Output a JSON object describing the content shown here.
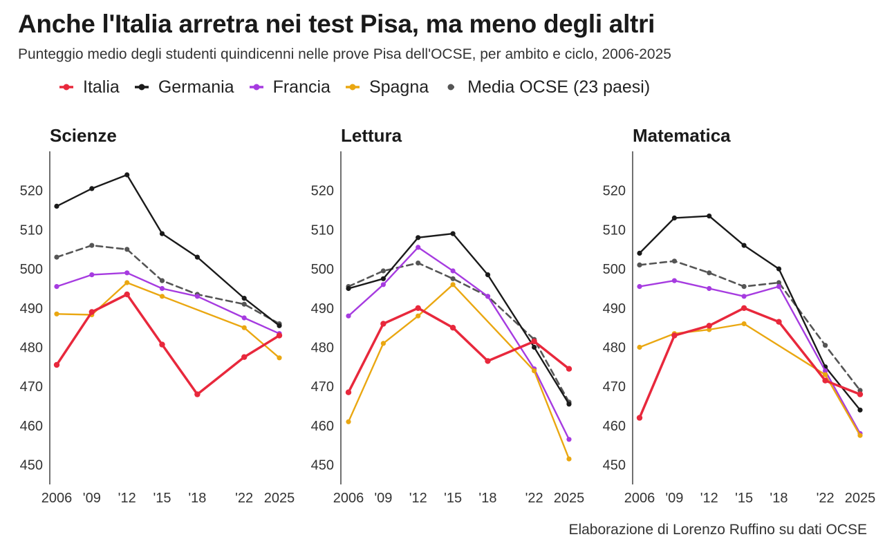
{
  "title": "Anche l'Italia arretra nei test Pisa, ma meno degli altri",
  "subtitle": "Punteggio medio degli studenti quindicenni nelle prove Pisa dell'OCSE, per ambito e ciclo, 2006-2025",
  "source": "Elaborazione di Lorenzo Ruffino su dati OCSE",
  "legend": [
    {
      "label": "Italia",
      "color": "#e8283c",
      "dashed": false
    },
    {
      "label": "Germania",
      "color": "#1a1a1a",
      "dashed": false
    },
    {
      "label": "Francia",
      "color": "#a63be0",
      "dashed": false
    },
    {
      "label": "Spagna",
      "color": "#eaa711",
      "dashed": false
    },
    {
      "label": "Media OCSE (23 paesi)",
      "color": "#555555",
      "dashed": true
    }
  ],
  "chart_data": [
    {
      "type": "line",
      "title": "Scienze",
      "x": [
        2006,
        2009,
        2012,
        2015,
        2018,
        2022,
        2025
      ],
      "x_tick_labels": [
        "2006",
        "'09",
        "'12",
        "'15",
        "'18",
        "'22",
        "2025"
      ],
      "y_ticks": [
        450,
        460,
        470,
        480,
        490,
        500,
        510,
        520
      ],
      "ylim": [
        445,
        530
      ],
      "grid": false,
      "series": [
        {
          "name": "Media OCSE (23 paesi)",
          "values": [
            503,
            506,
            505,
            497,
            493.5,
            491,
            486
          ]
        },
        {
          "name": "Germania",
          "values": [
            516,
            520.5,
            524,
            509,
            503,
            492.5,
            485.5
          ]
        },
        {
          "name": "Francia",
          "values": [
            495.5,
            498.5,
            499,
            495,
            493,
            487.5,
            483.5
          ]
        },
        {
          "name": "Spagna",
          "values": [
            488.5,
            488.3,
            496.5,
            493,
            null,
            485,
            477.3
          ]
        },
        {
          "name": "Italia",
          "values": [
            475.5,
            489,
            493.5,
            480.7,
            468,
            477.5,
            483
          ]
        }
      ]
    },
    {
      "type": "line",
      "title": "Lettura",
      "x": [
        2006,
        2009,
        2012,
        2015,
        2018,
        2022,
        2025
      ],
      "x_tick_labels": [
        "2006",
        "'09",
        "'12",
        "'15",
        "'18",
        "'22",
        "2025"
      ],
      "y_ticks": [
        450,
        460,
        470,
        480,
        490,
        500,
        510,
        520
      ],
      "ylim": [
        445,
        530
      ],
      "grid": false,
      "series": [
        {
          "name": "Media OCSE (23 paesi)",
          "values": [
            495.5,
            499.5,
            501.5,
            497.5,
            493,
            482,
            466
          ]
        },
        {
          "name": "Germania",
          "values": [
            495,
            497.5,
            508,
            509,
            498.5,
            480,
            465.5
          ]
        },
        {
          "name": "Francia",
          "values": [
            488,
            496,
            505.5,
            499.5,
            493,
            474.5,
            456.5
          ]
        },
        {
          "name": "Spagna",
          "values": [
            461,
            481,
            488,
            496,
            null,
            474,
            451.5
          ]
        },
        {
          "name": "Italia",
          "values": [
            468.5,
            486,
            490,
            485,
            476.5,
            481.5,
            474.5
          ]
        }
      ]
    },
    {
      "type": "line",
      "title": "Matematica",
      "x": [
        2006,
        2009,
        2012,
        2015,
        2018,
        2022,
        2025
      ],
      "x_tick_labels": [
        "2006",
        "'09",
        "'12",
        "'15",
        "'18",
        "'22",
        "2025"
      ],
      "y_ticks": [
        450,
        460,
        470,
        480,
        490,
        500,
        510,
        520
      ],
      "ylim": [
        445,
        530
      ],
      "grid": false,
      "series": [
        {
          "name": "Media OCSE (23 paesi)",
          "values": [
            501,
            502,
            499,
            495.5,
            496.5,
            480.5,
            469
          ]
        },
        {
          "name": "Germania",
          "values": [
            504,
            513,
            513.5,
            506,
            500,
            475,
            464
          ]
        },
        {
          "name": "Francia",
          "values": [
            495.5,
            497,
            495,
            493,
            495.5,
            474,
            458
          ]
        },
        {
          "name": "Spagna",
          "values": [
            480,
            483.5,
            484.5,
            486,
            null,
            473,
            457.5
          ]
        },
        {
          "name": "Italia",
          "values": [
            462,
            483,
            485.5,
            490,
            486.5,
            471.5,
            468
          ]
        }
      ]
    }
  ]
}
